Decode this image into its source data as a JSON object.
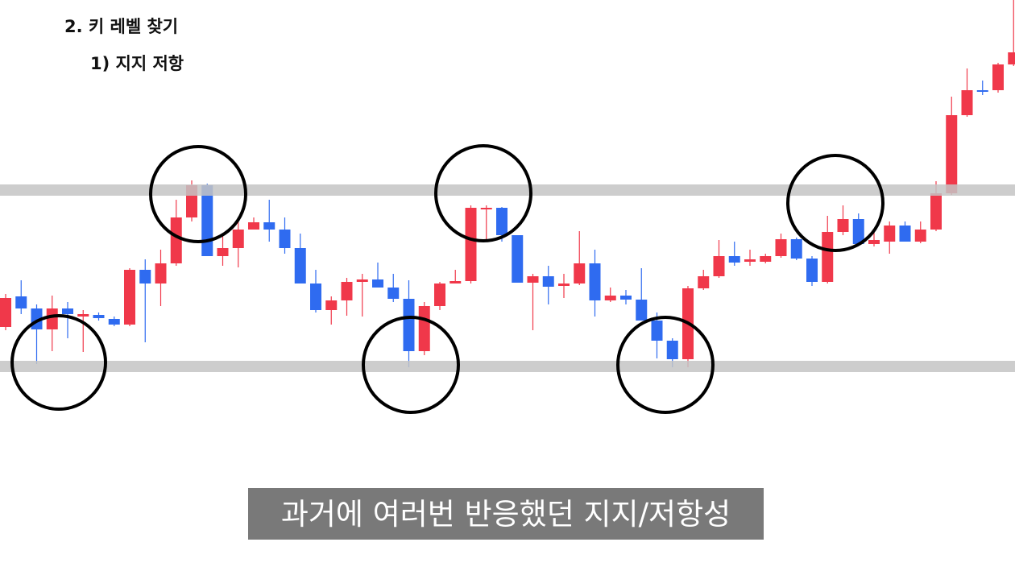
{
  "chart_data": {
    "type": "candlestick",
    "title": "2. 키 레벨 찾기",
    "subtitle": "1) 지지 저항",
    "caption": "과거에 여러번 반응했던 지지/저항성",
    "up_color": "#f0384a",
    "down_color": "#2f6bf0",
    "level_color": "#c4c4c4",
    "ylim": [
      0,
      704
    ],
    "levels": [
      468,
      249
    ],
    "open": [
      298,
      336,
      321,
      295,
      321,
      311,
      313,
      308,
      301,
      369,
      352,
      377,
      434,
      474,
      386,
      396,
      419,
      428,
      419,
      396,
      352,
      319,
      331,
      354,
      357,
      347,
      333,
      268,
      324,
      352,
      355,
      445,
      446,
      412,
      353,
      361,
      349,
      352,
      377,
      331,
      337,
      332,
      306,
      281,
      258,
      346,
      361,
      386,
      379,
      379,
      386,
      407,
      383,
      354,
      416,
      432,
      401,
      404,
      424,
      404,
      419,
      464,
      561,
      592,
      592,
      624
    ],
    "high": [
      339,
      356,
      326,
      337,
      329,
      319,
      316,
      311,
      371,
      382,
      394,
      456,
      480,
      476,
      414,
      434,
      434,
      456,
      434,
      414,
      369,
      336,
      359,
      364,
      378,
      364,
      356,
      329,
      354,
      369,
      449,
      449,
      447,
      412,
      364,
      374,
      364,
      417,
      394,
      347,
      344,
      371,
      316,
      284,
      349,
      369,
      406,
      404,
      394,
      389,
      414,
      409,
      386,
      436,
      449,
      439,
      419,
      429,
      429,
      429,
      479,
      584,
      619,
      604,
      626,
      704
    ],
    "low": [
      294,
      314,
      252,
      268,
      284,
      267,
      306,
      299,
      299,
      279,
      324,
      374,
      429,
      386,
      374,
      372,
      419,
      404,
      389,
      352,
      316,
      301,
      312,
      311,
      347,
      329,
      248,
      263,
      319,
      352,
      352,
      404,
      404,
      353,
      294,
      326,
      334,
      350,
      311,
      329,
      326,
      306,
      259,
      248,
      248,
      344,
      359,
      374,
      374,
      377,
      384,
      381,
      349,
      352,
      412,
      399,
      398,
      389,
      404,
      402,
      417,
      462,
      559,
      586,
      589,
      622
    ],
    "close": [
      334,
      321,
      295,
      321,
      314,
      314,
      309,
      301,
      369,
      352,
      377,
      434,
      474,
      386,
      396,
      419,
      428,
      419,
      396,
      352,
      319,
      331,
      354,
      357,
      347,
      333,
      268,
      324,
      352,
      355,
      446,
      446,
      412,
      353,
      361,
      348,
      352,
      377,
      331,
      337,
      332,
      306,
      281,
      258,
      346,
      361,
      386,
      378,
      382,
      386,
      407,
      383,
      354,
      416,
      432,
      401,
      406,
      424,
      404,
      419,
      464,
      561,
      592,
      590,
      624,
      639
    ]
  }
}
